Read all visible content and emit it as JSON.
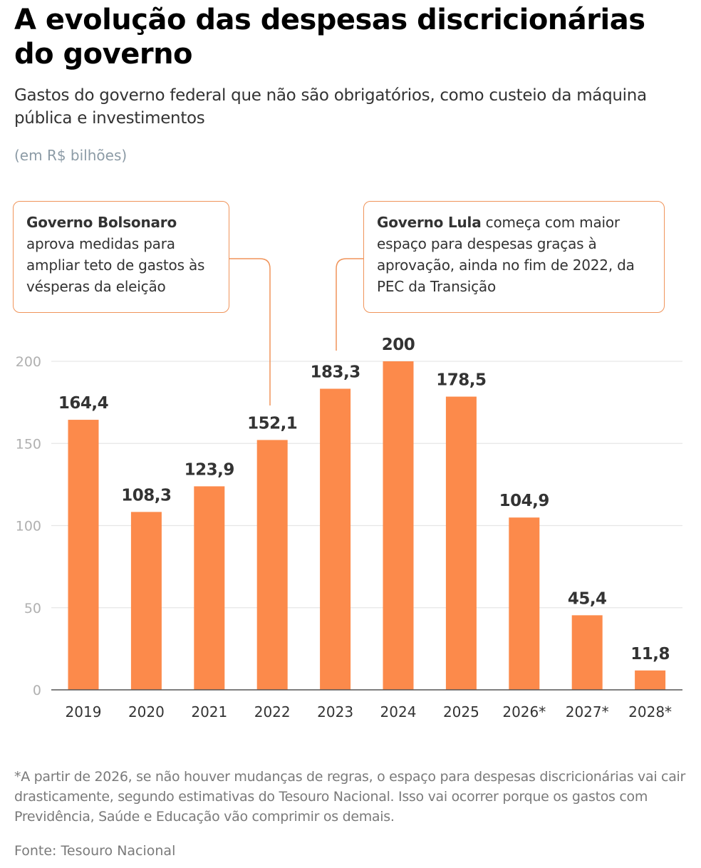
{
  "header": {
    "title": "A evolução das despesas discricionárias do governo",
    "subtitle": "Gastos do governo federal que não são obrigatórios, como custeio da máquina pública e investimentos",
    "unit": "(em R$ bilhões)"
  },
  "annotations": [
    {
      "bold": "Governo Bolsonaro",
      "text": "aprova medidas para ampliar teto de gastos às vésperas da eleição",
      "points_to": "2022"
    },
    {
      "bold": "Governo Lula",
      "text": "começa com maior espaço para despesas graças à aprovação, ainda no fim de 2022, da PEC da Transição",
      "points_to": "2023"
    }
  ],
  "colors": {
    "bar": "#fc8a4b",
    "annotation_line": "#f0945a",
    "gridline": "#e6e6e6",
    "axis": "#555555",
    "tick_label": "#b0b0b0",
    "value_label": "#333333"
  },
  "chart_data": {
    "type": "bar",
    "title": "A evolução das despesas discricionárias do governo",
    "xlabel": "",
    "ylabel": "R$ bilhões",
    "categories": [
      "2019",
      "2020",
      "2021",
      "2022",
      "2023",
      "2024",
      "2025",
      "2026*",
      "2027*",
      "2028*"
    ],
    "values": [
      164.4,
      108.3,
      123.9,
      152.1,
      183.3,
      200,
      178.5,
      104.9,
      45.4,
      11.8
    ],
    "value_labels": [
      "164,4",
      "108,3",
      "123,9",
      "152,1",
      "183,3",
      "200",
      "178,5",
      "104,9",
      "45,4",
      "11,8"
    ],
    "ylim": [
      0,
      200
    ],
    "yticks": [
      0,
      50,
      100,
      150,
      200
    ],
    "ytick_labels": [
      "0",
      "50",
      "100",
      "150",
      "200"
    ],
    "grid": true,
    "legend": "none"
  },
  "footer": {
    "footnote": "*A partir de 2026, se não houver mudanças de regras, o espaço para despesas discricionárias vai cair drasticamente, segundo estimativas do Tesouro Nacional. Isso vai ocorrer porque os gastos com Previdência, Saúde e Educação vão comprimir os demais.",
    "source": "Fonte: Tesouro Nacional"
  }
}
